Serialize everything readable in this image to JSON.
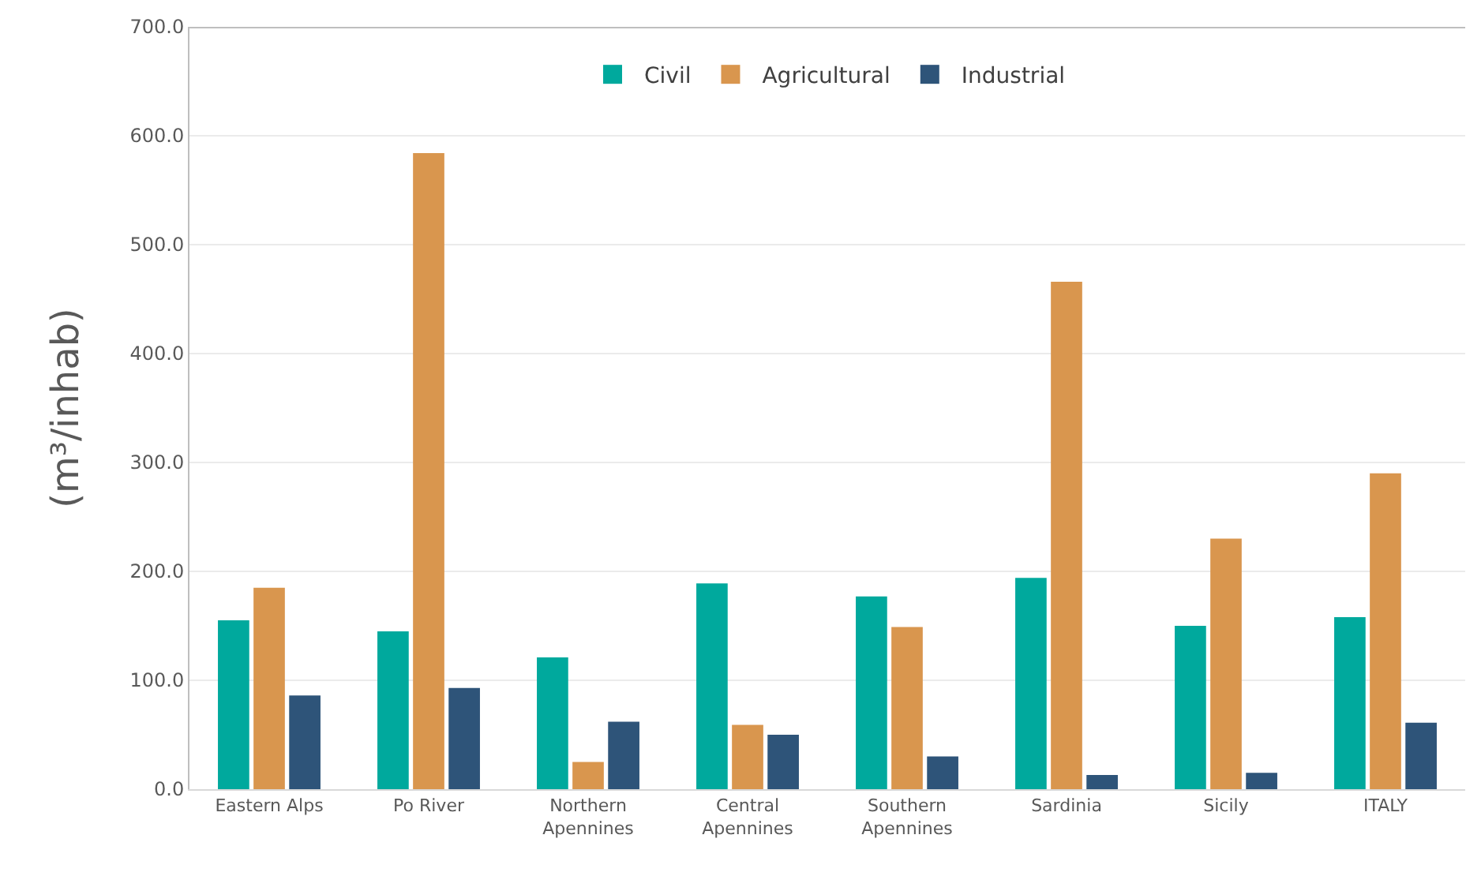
{
  "chart_data": {
    "type": "bar",
    "ylabel": "(m³/inhab)",
    "categories": [
      "Eastern Alps",
      "Po River",
      "Northern Apennines",
      "Central Apennines",
      "Southern Apennines",
      "Sardinia",
      "Sicily",
      "ITALY"
    ],
    "series": [
      {
        "name": "Civil",
        "color": "#00a99d",
        "values": [
          155,
          145,
          121,
          189,
          177,
          194,
          150,
          158
        ]
      },
      {
        "name": "Agricultural",
        "color": "#d9964e",
        "values": [
          185,
          584,
          25,
          59,
          149,
          466,
          230,
          290
        ]
      },
      {
        "name": "Industrial",
        "color": "#2e5479",
        "values": [
          86,
          93,
          62,
          50,
          30,
          13,
          15,
          61
        ]
      }
    ],
    "ylim": [
      0,
      700
    ],
    "yticks": [
      {
        "value": 0,
        "label": "0.0"
      },
      {
        "value": 100,
        "label": "100.0"
      },
      {
        "value": 200,
        "label": "200.0"
      },
      {
        "value": 300,
        "label": "300.0"
      },
      {
        "value": 400,
        "label": "400.0"
      },
      {
        "value": 500,
        "label": "500.0"
      },
      {
        "value": 600,
        "label": "600.0"
      },
      {
        "value": 700,
        "label": "700.0"
      }
    ],
    "grid": "y",
    "legend": "top"
  }
}
